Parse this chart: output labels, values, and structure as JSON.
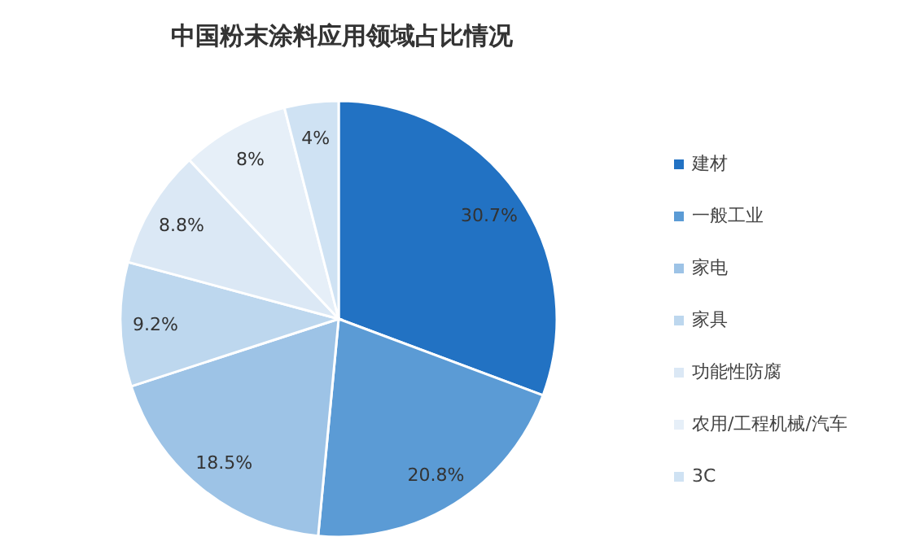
{
  "chart_data": {
    "type": "pie",
    "title": "中国粉末涂料应用领域占比情况",
    "categories": [
      "建材",
      "一般工业",
      "家电",
      "家具",
      "功能性防腐",
      "农用/工程机械/汽车",
      "3C"
    ],
    "values": [
      30.7,
      20.8,
      18.5,
      9.2,
      8.8,
      8,
      4
    ],
    "value_labels": [
      "30.7%",
      "20.8%",
      "18.5%",
      "9.2%",
      "8.8%",
      "8%",
      "4%"
    ],
    "colors": [
      "#2272c3",
      "#5b9bd5",
      "#9dc3e6",
      "#bdd7ee",
      "#dbe8f5",
      "#e6eff8",
      "#cfe2f3"
    ],
    "legend": "right"
  }
}
